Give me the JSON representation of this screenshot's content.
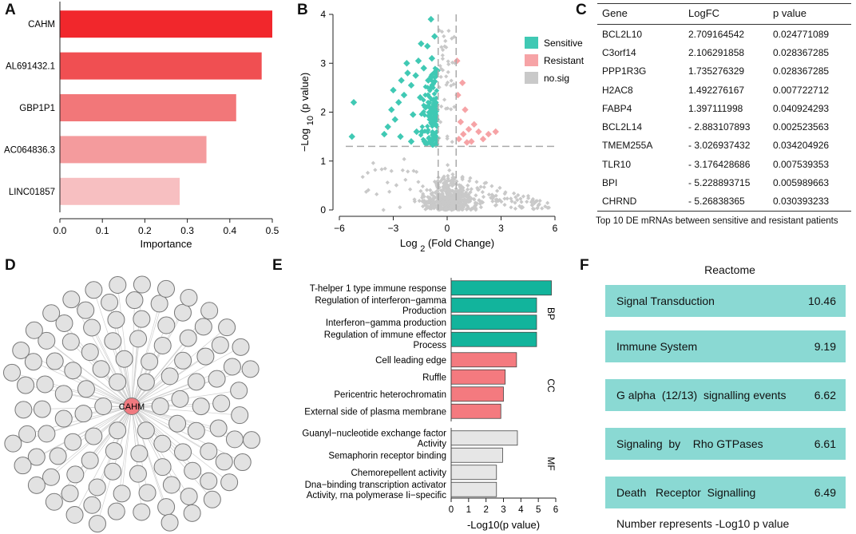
{
  "panels": {
    "a": "A",
    "b": "B",
    "c": "C",
    "d": "D",
    "e": "E",
    "f": "F"
  },
  "chart_data": [
    {
      "id": "A",
      "type": "bar",
      "orientation": "horizontal",
      "categories": [
        "CAHM",
        "AL691432.1",
        "GBP1P1",
        "AC064836.3",
        "LINC01857"
      ],
      "values": [
        0.5,
        0.475,
        0.415,
        0.345,
        0.282
      ],
      "colors": [
        "#f1272c",
        "#f04f52",
        "#f27779",
        "#f49b9d",
        "#f7bfc1"
      ],
      "xlabel": "Importance",
      "xlim": [
        0,
        0.5
      ],
      "xticks": [
        "0.0",
        "0.1",
        "0.2",
        "0.3",
        "0.4",
        "0.5"
      ]
    },
    {
      "id": "B",
      "type": "scatter",
      "title": "",
      "xlabel_parts": [
        "Log",
        "2",
        "(Fold",
        "Change)"
      ],
      "ylabel_parts": [
        "−Log",
        "10",
        "(p",
        "value)"
      ],
      "xlim": [
        -6,
        6
      ],
      "ylim": [
        0,
        4
      ],
      "xticks": [
        "−6",
        "−3",
        "0",
        "3",
        "6"
      ],
      "yticks": [
        "0",
        "1",
        "2",
        "3",
        "4"
      ],
      "thresholds": {
        "logfc": [
          -0.5,
          0.5
        ],
        "neglog10p": 1.3
      },
      "legend": {
        "position": "top-right",
        "entries": [
          "Sensitive",
          "Resistant",
          "no.sig"
        ]
      },
      "colors": {
        "Sensitive": "#40c9b4",
        "Resistant": "#f6a3a6",
        "no.sig": "#c9c9c9"
      },
      "series": [
        {
          "name": "Sensitive",
          "points": [
            [
              -5.2,
              2.2
            ],
            [
              -5.3,
              1.5
            ],
            [
              -3.3,
              1.7
            ],
            [
              -3.1,
              2.05
            ],
            [
              -3.0,
              2.45
            ],
            [
              -2.7,
              2.2
            ],
            [
              -2.55,
              2.65
            ],
            [
              -2.4,
              2.35
            ],
            [
              -2.2,
              2.8
            ],
            [
              -2.0,
              2.55
            ],
            [
              -1.9,
              1.95
            ],
            [
              -1.75,
              2.75
            ],
            [
              -1.6,
              3.05
            ],
            [
              -1.5,
              2.3
            ],
            [
              -1.4,
              1.6
            ],
            [
              -1.3,
              2.9
            ],
            [
              -1.2,
              2.1
            ],
            [
              -1.1,
              3.35
            ],
            [
              -1.05,
              2.65
            ],
            [
              -0.95,
              1.85
            ],
            [
              -0.9,
              2.5
            ],
            [
              -0.85,
              3.1
            ],
            [
              -0.75,
              2.25
            ],
            [
              -0.7,
              3.55
            ],
            [
              -0.65,
              1.75
            ],
            [
              -0.6,
              2.05
            ],
            [
              -0.55,
              2.85
            ],
            [
              -0.8,
              1.45
            ],
            [
              -2.6,
              1.5
            ],
            [
              -2.0,
              1.4
            ],
            [
              -3.5,
              1.55
            ],
            [
              -0.9,
              3.9
            ],
            [
              -0.62,
              1.35
            ],
            [
              -1.25,
              1.4
            ],
            [
              -1.7,
              1.6
            ],
            [
              -2.9,
              1.85
            ],
            [
              -1.45,
              3.4
            ],
            [
              -2.25,
              3.0
            ]
          ]
        },
        {
          "name": "Resistant",
          "points": [
            [
              0.6,
              2.35
            ],
            [
              0.75,
              1.8
            ],
            [
              0.9,
              1.55
            ],
            [
              1.0,
              2.05
            ],
            [
              1.2,
              1.65
            ],
            [
              1.35,
              1.4
            ],
            [
              1.5,
              1.75
            ],
            [
              1.75,
              1.6
            ],
            [
              2.0,
              1.45
            ],
            [
              2.3,
              1.55
            ],
            [
              2.7,
              1.6
            ],
            [
              0.65,
              1.45
            ],
            [
              0.55,
              3.05
            ],
            [
              0.85,
              2.6
            ],
            [
              1.1,
              1.38
            ]
          ]
        },
        {
          "name": "no.sig",
          "points": []
        }
      ]
    },
    {
      "id": "E",
      "type": "bar",
      "orientation": "horizontal",
      "xlabel": "-Log10(p value)",
      "xlim": [
        0,
        6
      ],
      "xticks": [
        "0",
        "1",
        "2",
        "3",
        "4",
        "5",
        "6"
      ],
      "groups": [
        {
          "name": "BP",
          "color": "#12b49c",
          "items": [
            {
              "label": [
                "T-helper 1 type immune response"
              ],
              "value": 5.75
            },
            {
              "label": [
                "Regulation of interferon−gamma",
                "Production"
              ],
              "value": 4.9
            },
            {
              "label": [
                "Interferon−gamma production"
              ],
              "value": 4.9
            },
            {
              "label": [
                "Regulation of immune effector",
                "Process"
              ],
              "value": 4.9
            }
          ]
        },
        {
          "name": "CC",
          "color": "#f47a7f",
          "items": [
            {
              "label": [
                "Cell leading edge"
              ],
              "value": 3.75
            },
            {
              "label": [
                "Ruffle"
              ],
              "value": 3.1
            },
            {
              "label": [
                "Pericentric heterochromatin"
              ],
              "value": 3.0
            },
            {
              "label": [
                "External side of plasma membrane"
              ],
              "value": 2.85
            }
          ]
        },
        {
          "name": "MF",
          "color": "#e6e6e6",
          "items": [
            {
              "label": [
                "Guanyl−nucleotide exchange factor",
                "Activity"
              ],
              "value": 3.8
            },
            {
              "label": [
                "Semaphorin receptor binding"
              ],
              "value": 2.95
            },
            {
              "label": [
                "Chemorepellent activity"
              ],
              "value": 2.6
            },
            {
              "label": [
                "Dna−binding transcription activator",
                "Activity, rna polymerase Ii−specific"
              ],
              "value": 2.6
            }
          ]
        }
      ]
    }
  ],
  "table_c": {
    "headers": [
      "Gene",
      "LogFC",
      "p value"
    ],
    "rows": [
      [
        "BCL2L10",
        "2.709164542",
        "0.024771089"
      ],
      [
        "C3orf14",
        "2.106291858",
        "0.028367285"
      ],
      [
        "PPP1R3G",
        "1.735276329",
        "0.028367285"
      ],
      [
        "H2AC8",
        "1.492276167",
        "0.007722712"
      ],
      [
        "FABP4",
        "1.397111998",
        "0.040924293"
      ],
      [
        "BCL2L14",
        "- 2.883107893",
        "0.002523563"
      ],
      [
        "TMEM255A",
        "- 3.026937432",
        "0.034204926"
      ],
      [
        "TLR10",
        "- 3.176428686",
        "0.007539353"
      ],
      [
        "BPI",
        "- 5.228893715",
        "0.005989663"
      ],
      [
        "CHRND",
        "- 5.26838365",
        "0.030393233"
      ]
    ],
    "caption": "Top 10 DE mRNAs between sensitive and resistant patients"
  },
  "network_d": {
    "center_label": "CAHM",
    "center_color": "#f07a80",
    "node_color": "#e2e2e2"
  },
  "reactome_f": {
    "title": "Reactome",
    "color": "#8ad9d3",
    "items": [
      {
        "name": "Signal Transduction",
        "value": "10.46"
      },
      {
        "name": "Immune System",
        "value": "9.19"
      },
      {
        "name": "G alpha  (12/13)  signalling events",
        "value": "6.62"
      },
      {
        "name": "Signaling  by    Rho GTPases",
        "value": "6.61"
      },
      {
        "name": "Death   Receptor  Signalling",
        "value": "6.49"
      }
    ],
    "footnote": "Number represents -Log10 p value"
  }
}
